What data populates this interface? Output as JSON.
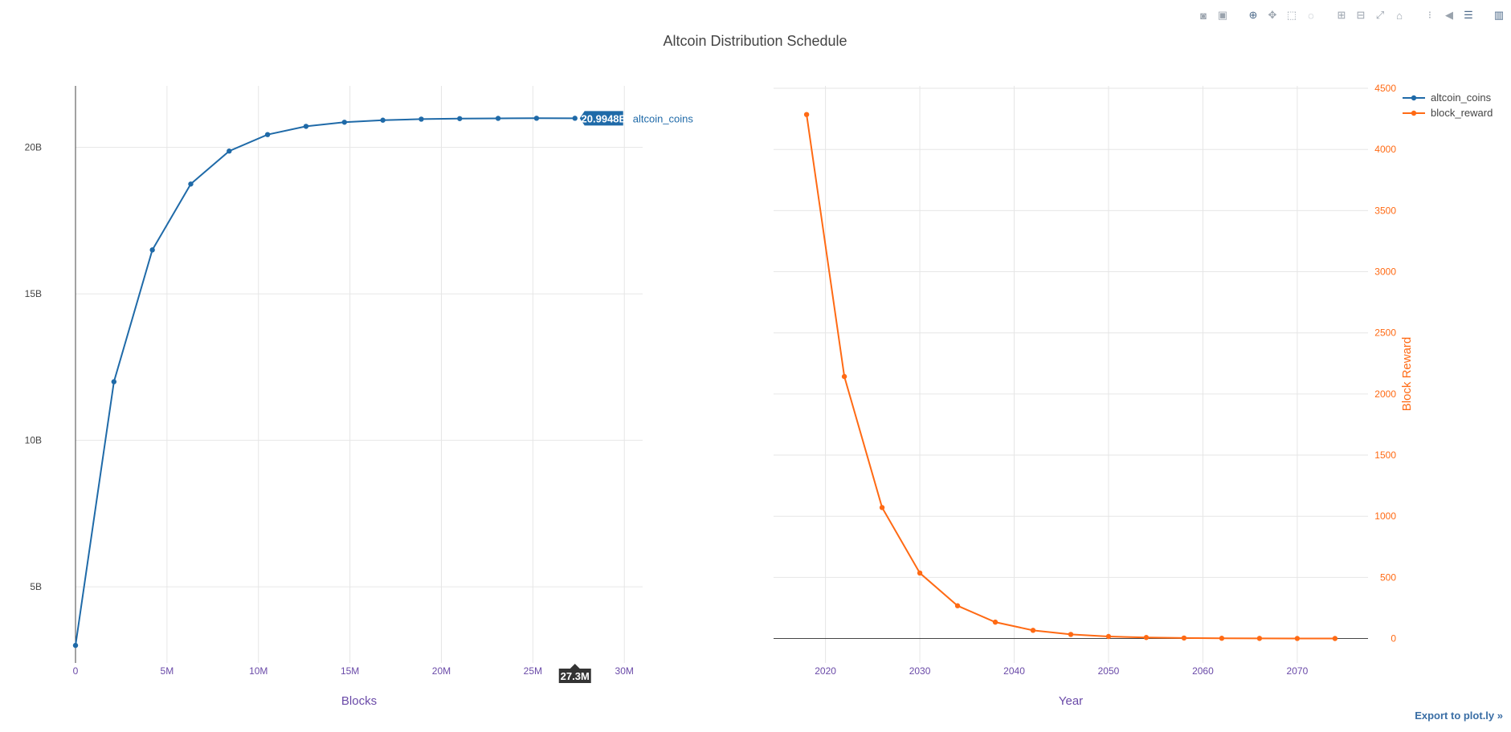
{
  "title": "Altcoin Distribution Schedule",
  "toolbar": {
    "icons": [
      "camera-icon",
      "save-icon",
      "zoom-icon",
      "pan-icon",
      "box-select-icon",
      "lasso-select-icon",
      "zoom-in-icon",
      "zoom-out-icon",
      "autoscale-icon",
      "reset-axes-icon",
      "spike-lines-icon",
      "hover-closest-icon",
      "hover-compare-icon",
      "plotly-logo-icon"
    ]
  },
  "export_label": "Export to plot.ly »",
  "colors": {
    "blue": "#1f6aa8",
    "orange": "#ff6a14",
    "axis_title": "#6a4aa8",
    "grid": "#e6e6e6",
    "hover_dark": "#333333"
  },
  "chart_data": [
    {
      "type": "line",
      "xlabel": "Blocks",
      "ylabel": "",
      "xlim": [
        0,
        31000000
      ],
      "ylim": [
        2400000000,
        22100000000
      ],
      "x_ticks": [
        0,
        5000000,
        10000000,
        15000000,
        20000000,
        25000000,
        30000000
      ],
      "x_tick_labels": [
        "0",
        "5M",
        "10M",
        "15M",
        "20M",
        "25M",
        "30M"
      ],
      "y_ticks": [
        5000000000,
        10000000000,
        15000000000,
        20000000000
      ],
      "y_tick_labels": [
        "5B",
        "10B",
        "15B",
        "20B"
      ],
      "grid": true,
      "series": [
        {
          "name": "altcoin_coins",
          "color": "#1f6aa8",
          "x": [
            0,
            2100000,
            4200000,
            6300000,
            8400000,
            10500000,
            12600000,
            14700000,
            16800000,
            18900000,
            21000000,
            23100000,
            25200000,
            27300000
          ],
          "y": [
            3000000000,
            12000000000,
            16500000000,
            18750000000,
            19875000000,
            20437500000,
            20718750000,
            20859375000,
            20929687500,
            20964843750,
            20982421875,
            20991210938,
            20995605469,
            20994800000
          ]
        }
      ],
      "hover": {
        "x_label": "27.3M",
        "y_label": "20.9948B",
        "series": "altcoin_coins"
      }
    },
    {
      "type": "line",
      "xlabel": "Year",
      "ylabel": "Block Reward",
      "xlim": [
        2014.5,
        2077.5
      ],
      "ylim": [
        -200,
        4520
      ],
      "x_ticks": [
        2020,
        2030,
        2040,
        2050,
        2060,
        2070
      ],
      "x_tick_labels": [
        "2020",
        "2030",
        "2040",
        "2050",
        "2060",
        "2070"
      ],
      "y_ticks": [
        0,
        500,
        1000,
        1500,
        2000,
        2500,
        3000,
        3500,
        4000,
        4500
      ],
      "y_tick_labels": [
        "0",
        "500",
        "1000",
        "1500",
        "2000",
        "2500",
        "3000",
        "3500",
        "4000",
        "4500"
      ],
      "grid": true,
      "legend_placement": "top-right",
      "legend": [
        "altcoin_coins",
        "block_reward"
      ],
      "series": [
        {
          "name": "block_reward",
          "color": "#ff6a14",
          "x": [
            2018,
            2022,
            2026,
            2030,
            2034,
            2038,
            2042,
            2046,
            2050,
            2054,
            2058,
            2062,
            2066,
            2070,
            2074
          ],
          "y": [
            4285.7,
            2142.9,
            1071.4,
            535.7,
            267.9,
            133.9,
            67.0,
            33.5,
            16.7,
            8.4,
            4.2,
            2.1,
            1.0,
            0.5,
            0.3
          ]
        }
      ]
    }
  ]
}
